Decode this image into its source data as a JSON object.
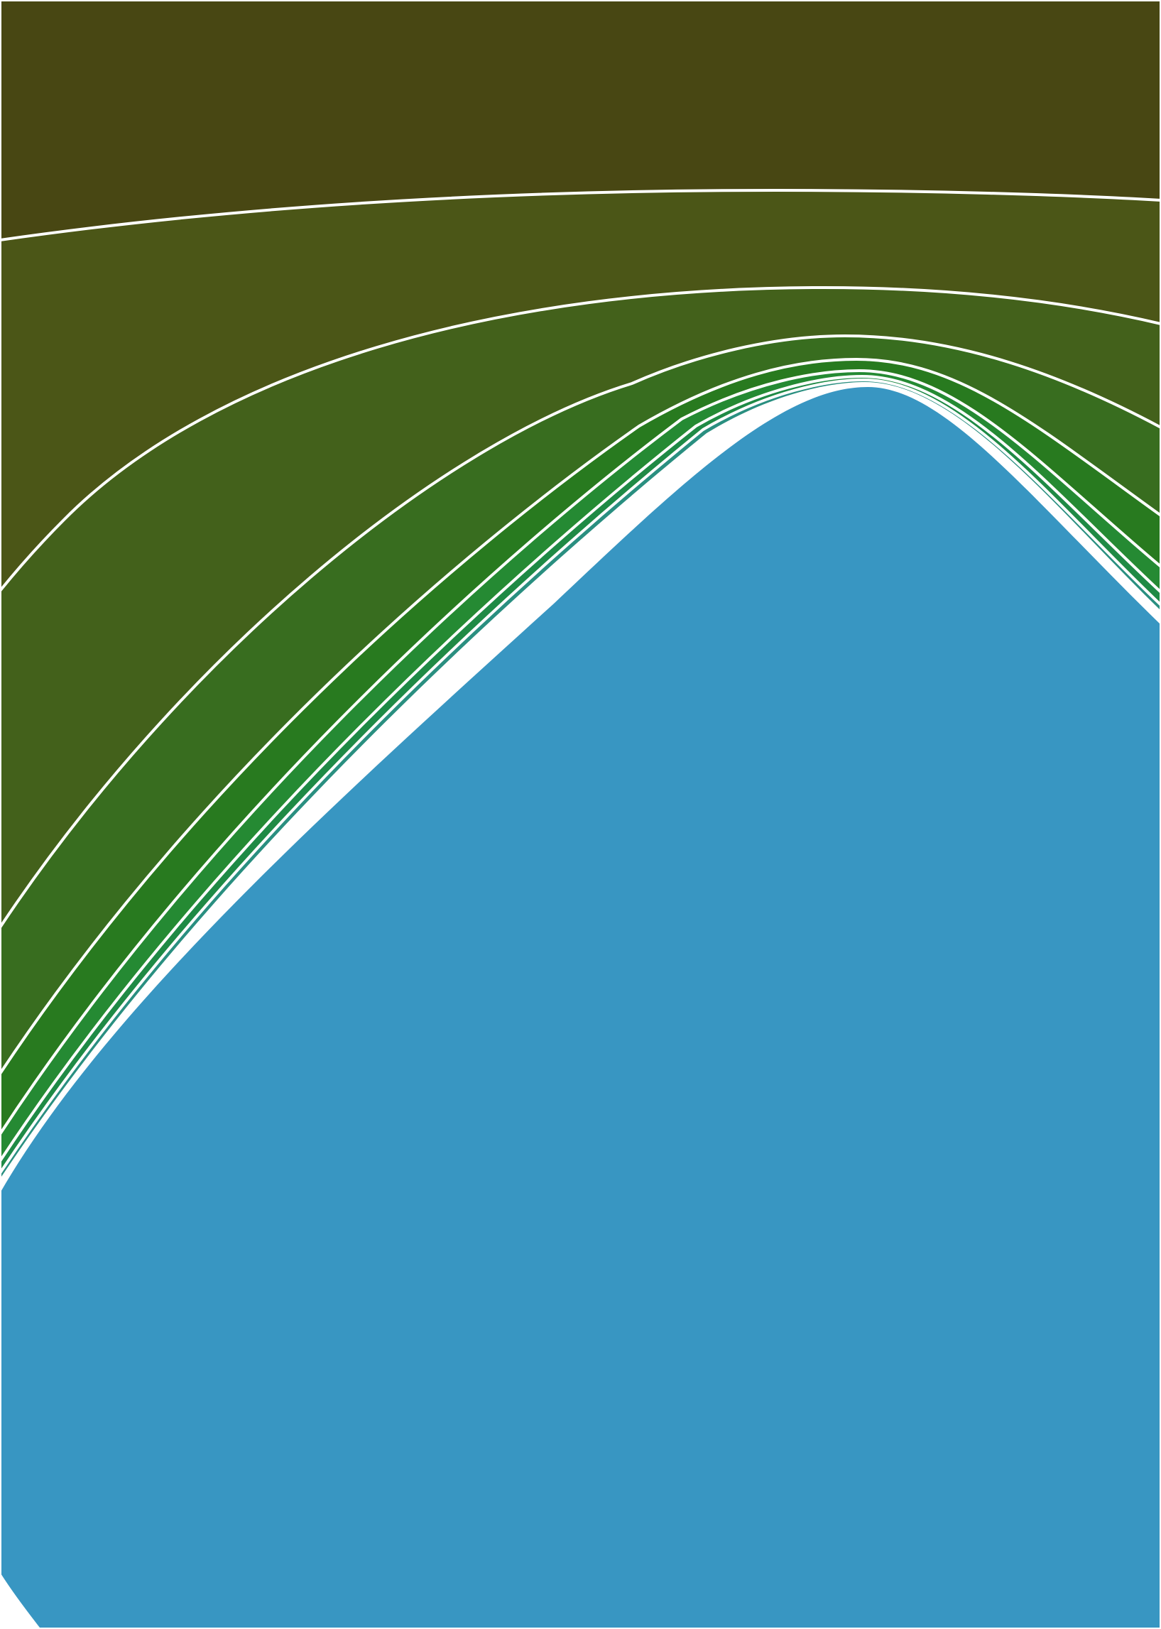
{
  "artwork": {
    "background": "#ffffff",
    "frame_color": "#ffffff",
    "line_color": "#ffffff",
    "bands": [
      {
        "name": "band-top-olive",
        "color": "#484713"
      },
      {
        "name": "band-olive",
        "color": "#4b5617"
      },
      {
        "name": "band-olive-green",
        "color": "#43611b"
      },
      {
        "name": "band-moss-green",
        "color": "#386d1f"
      },
      {
        "name": "band-green",
        "color": "#287a1f"
      },
      {
        "name": "band-green-light",
        "color": "#258a33"
      },
      {
        "name": "band-green-teal",
        "color": "#1f8a45"
      },
      {
        "name": "band-teal",
        "color": "#2a8f80"
      },
      {
        "name": "band-blue",
        "color": "#3896c2"
      }
    ]
  }
}
